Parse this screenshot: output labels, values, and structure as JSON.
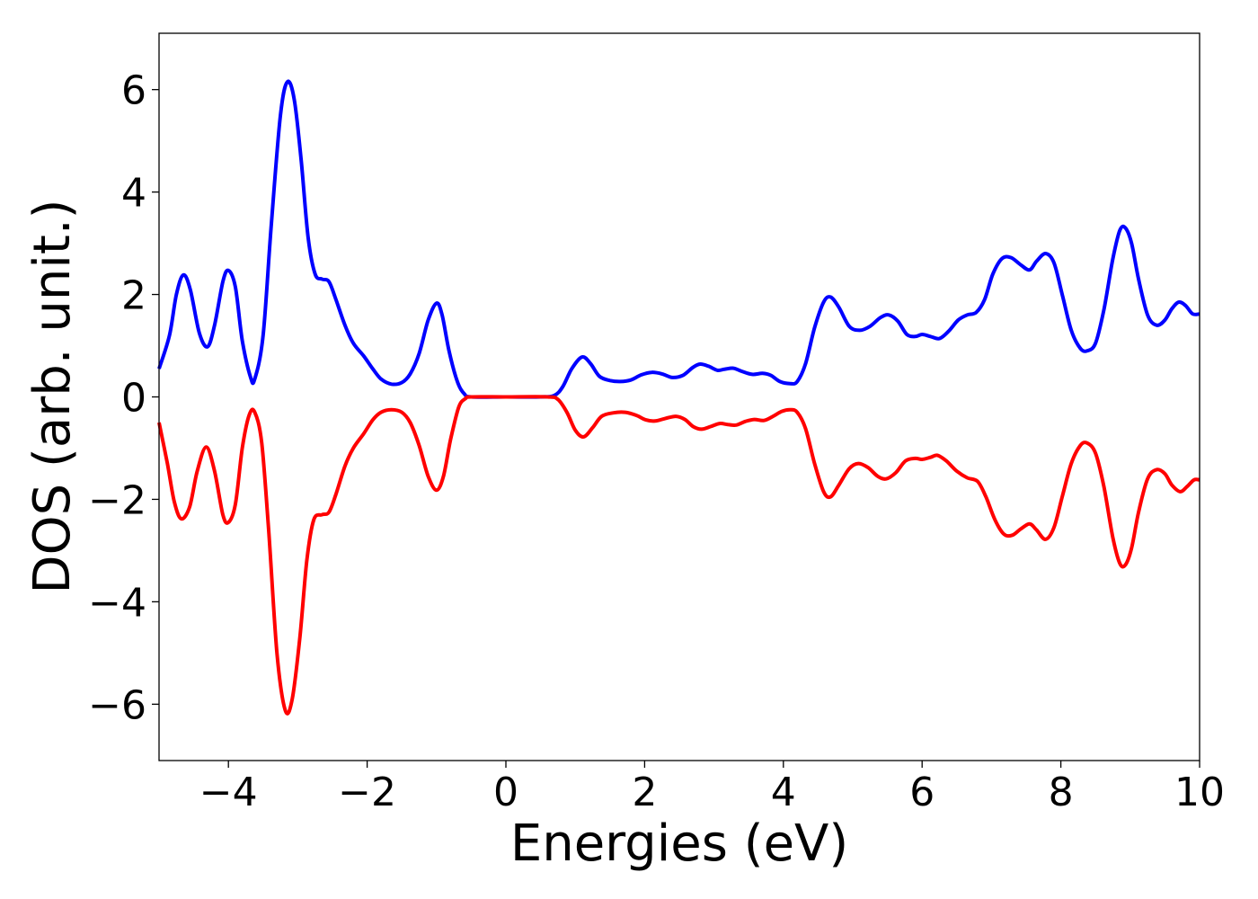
{
  "chart_data": {
    "type": "line",
    "title": "",
    "xlabel": "Energies (eV)",
    "ylabel": "DOS (arb. unit.)",
    "xlim": [
      -5,
      10
    ],
    "ylim": [
      -7.1,
      7.1
    ],
    "xticks": [
      -4,
      -2,
      0,
      2,
      4,
      6,
      8,
      10
    ],
    "yticks": [
      -6,
      -4,
      -2,
      0,
      2,
      4,
      6
    ],
    "xtick_labels": [
      "−4",
      "−2",
      "0",
      "2",
      "4",
      "6",
      "8",
      "10"
    ],
    "ytick_labels": [
      "−6",
      "−4",
      "−2",
      "0",
      "2",
      "4",
      "6"
    ],
    "grid": false,
    "legend": "none",
    "series": [
      {
        "color": "#0000ff",
        "points": [
          [
            -5.0,
            0.55
          ],
          [
            -4.85,
            1.2
          ],
          [
            -4.75,
            2.0
          ],
          [
            -4.65,
            2.38
          ],
          [
            -4.55,
            2.1
          ],
          [
            -4.42,
            1.25
          ],
          [
            -4.3,
            0.98
          ],
          [
            -4.2,
            1.4
          ],
          [
            -4.08,
            2.25
          ],
          [
            -4.0,
            2.47
          ],
          [
            -3.9,
            2.15
          ],
          [
            -3.8,
            1.1
          ],
          [
            -3.68,
            0.38
          ],
          [
            -3.62,
            0.35
          ],
          [
            -3.5,
            1.2
          ],
          [
            -3.38,
            3.4
          ],
          [
            -3.25,
            5.5
          ],
          [
            -3.15,
            6.15
          ],
          [
            -3.05,
            5.8
          ],
          [
            -2.95,
            4.6
          ],
          [
            -2.85,
            3.1
          ],
          [
            -2.75,
            2.4
          ],
          [
            -2.65,
            2.3
          ],
          [
            -2.55,
            2.25
          ],
          [
            -2.45,
            1.9
          ],
          [
            -2.32,
            1.4
          ],
          [
            -2.2,
            1.05
          ],
          [
            -2.05,
            0.8
          ],
          [
            -1.92,
            0.55
          ],
          [
            -1.8,
            0.35
          ],
          [
            -1.65,
            0.25
          ],
          [
            -1.5,
            0.28
          ],
          [
            -1.38,
            0.45
          ],
          [
            -1.25,
            0.85
          ],
          [
            -1.12,
            1.5
          ],
          [
            -1.0,
            1.83
          ],
          [
            -0.92,
            1.6
          ],
          [
            -0.82,
            0.9
          ],
          [
            -0.7,
            0.3
          ],
          [
            -0.6,
            0.06
          ],
          [
            -0.5,
            0.0
          ],
          [
            0.0,
            0.0
          ],
          [
            0.5,
            0.0
          ],
          [
            0.7,
            0.03
          ],
          [
            0.82,
            0.2
          ],
          [
            0.95,
            0.55
          ],
          [
            1.1,
            0.78
          ],
          [
            1.22,
            0.65
          ],
          [
            1.35,
            0.4
          ],
          [
            1.5,
            0.32
          ],
          [
            1.65,
            0.3
          ],
          [
            1.8,
            0.33
          ],
          [
            1.95,
            0.43
          ],
          [
            2.1,
            0.48
          ],
          [
            2.25,
            0.45
          ],
          [
            2.4,
            0.38
          ],
          [
            2.55,
            0.42
          ],
          [
            2.7,
            0.58
          ],
          [
            2.8,
            0.64
          ],
          [
            2.92,
            0.6
          ],
          [
            3.05,
            0.52
          ],
          [
            3.15,
            0.54
          ],
          [
            3.28,
            0.56
          ],
          [
            3.4,
            0.5
          ],
          [
            3.55,
            0.44
          ],
          [
            3.7,
            0.46
          ],
          [
            3.82,
            0.42
          ],
          [
            3.95,
            0.3
          ],
          [
            4.1,
            0.26
          ],
          [
            4.2,
            0.3
          ],
          [
            4.32,
            0.65
          ],
          [
            4.45,
            1.35
          ],
          [
            4.58,
            1.85
          ],
          [
            4.68,
            1.95
          ],
          [
            4.8,
            1.75
          ],
          [
            4.95,
            1.38
          ],
          [
            5.1,
            1.3
          ],
          [
            5.25,
            1.38
          ],
          [
            5.4,
            1.55
          ],
          [
            5.52,
            1.6
          ],
          [
            5.65,
            1.48
          ],
          [
            5.78,
            1.22
          ],
          [
            5.9,
            1.18
          ],
          [
            6.0,
            1.22
          ],
          [
            6.12,
            1.18
          ],
          [
            6.25,
            1.14
          ],
          [
            6.38,
            1.28
          ],
          [
            6.52,
            1.5
          ],
          [
            6.65,
            1.6
          ],
          [
            6.78,
            1.65
          ],
          [
            6.9,
            1.9
          ],
          [
            7.02,
            2.4
          ],
          [
            7.15,
            2.7
          ],
          [
            7.28,
            2.72
          ],
          [
            7.42,
            2.58
          ],
          [
            7.55,
            2.48
          ],
          [
            7.65,
            2.65
          ],
          [
            7.78,
            2.8
          ],
          [
            7.9,
            2.62
          ],
          [
            8.02,
            2.0
          ],
          [
            8.15,
            1.3
          ],
          [
            8.28,
            0.95
          ],
          [
            8.38,
            0.9
          ],
          [
            8.5,
            1.05
          ],
          [
            8.62,
            1.7
          ],
          [
            8.75,
            2.7
          ],
          [
            8.85,
            3.25
          ],
          [
            8.93,
            3.3
          ],
          [
            9.02,
            3.0
          ],
          [
            9.12,
            2.3
          ],
          [
            9.25,
            1.6
          ],
          [
            9.38,
            1.4
          ],
          [
            9.5,
            1.5
          ],
          [
            9.6,
            1.72
          ],
          [
            9.7,
            1.85
          ],
          [
            9.8,
            1.78
          ],
          [
            9.9,
            1.62
          ],
          [
            10.0,
            1.62
          ]
        ]
      },
      {
        "color": "#ff0000",
        "points": [
          [
            -5.0,
            -0.5
          ],
          [
            -4.88,
            -1.3
          ],
          [
            -4.78,
            -2.05
          ],
          [
            -4.68,
            -2.38
          ],
          [
            -4.56,
            -2.15
          ],
          [
            -4.45,
            -1.45
          ],
          [
            -4.32,
            -0.98
          ],
          [
            -4.2,
            -1.45
          ],
          [
            -4.08,
            -2.3
          ],
          [
            -4.0,
            -2.45
          ],
          [
            -3.9,
            -2.1
          ],
          [
            -3.8,
            -1.0
          ],
          [
            -3.7,
            -0.35
          ],
          [
            -3.62,
            -0.3
          ],
          [
            -3.52,
            -0.9
          ],
          [
            -3.42,
            -2.6
          ],
          [
            -3.3,
            -5.0
          ],
          [
            -3.18,
            -6.12
          ],
          [
            -3.08,
            -5.9
          ],
          [
            -2.97,
            -4.7
          ],
          [
            -2.87,
            -3.2
          ],
          [
            -2.77,
            -2.4
          ],
          [
            -2.65,
            -2.3
          ],
          [
            -2.55,
            -2.25
          ],
          [
            -2.45,
            -1.9
          ],
          [
            -2.32,
            -1.35
          ],
          [
            -2.2,
            -1.0
          ],
          [
            -2.05,
            -0.72
          ],
          [
            -1.92,
            -0.45
          ],
          [
            -1.8,
            -0.3
          ],
          [
            -1.65,
            -0.25
          ],
          [
            -1.5,
            -0.3
          ],
          [
            -1.38,
            -0.5
          ],
          [
            -1.25,
            -0.95
          ],
          [
            -1.12,
            -1.55
          ],
          [
            -1.0,
            -1.82
          ],
          [
            -0.9,
            -1.55
          ],
          [
            -0.8,
            -0.85
          ],
          [
            -0.68,
            -0.2
          ],
          [
            -0.58,
            -0.03
          ],
          [
            -0.5,
            0.0
          ],
          [
            0.0,
            0.0
          ],
          [
            0.6,
            0.0
          ],
          [
            0.75,
            -0.05
          ],
          [
            0.88,
            -0.3
          ],
          [
            1.0,
            -0.65
          ],
          [
            1.12,
            -0.78
          ],
          [
            1.25,
            -0.6
          ],
          [
            1.38,
            -0.38
          ],
          [
            1.55,
            -0.31
          ],
          [
            1.72,
            -0.3
          ],
          [
            1.88,
            -0.36
          ],
          [
            2.02,
            -0.45
          ],
          [
            2.15,
            -0.47
          ],
          [
            2.3,
            -0.42
          ],
          [
            2.45,
            -0.38
          ],
          [
            2.58,
            -0.44
          ],
          [
            2.7,
            -0.58
          ],
          [
            2.82,
            -0.63
          ],
          [
            2.95,
            -0.58
          ],
          [
            3.08,
            -0.52
          ],
          [
            3.2,
            -0.54
          ],
          [
            3.32,
            -0.55
          ],
          [
            3.45,
            -0.48
          ],
          [
            3.58,
            -0.44
          ],
          [
            3.72,
            -0.46
          ],
          [
            3.85,
            -0.38
          ],
          [
            3.98,
            -0.28
          ],
          [
            4.1,
            -0.25
          ],
          [
            4.2,
            -0.3
          ],
          [
            4.32,
            -0.62
          ],
          [
            4.45,
            -1.3
          ],
          [
            4.58,
            -1.85
          ],
          [
            4.68,
            -1.95
          ],
          [
            4.8,
            -1.72
          ],
          [
            4.95,
            -1.4
          ],
          [
            5.08,
            -1.3
          ],
          [
            5.22,
            -1.38
          ],
          [
            5.36,
            -1.55
          ],
          [
            5.48,
            -1.6
          ],
          [
            5.62,
            -1.48
          ],
          [
            5.76,
            -1.25
          ],
          [
            5.9,
            -1.2
          ],
          [
            6.0,
            -1.22
          ],
          [
            6.12,
            -1.18
          ],
          [
            6.22,
            -1.14
          ],
          [
            6.35,
            -1.25
          ],
          [
            6.5,
            -1.45
          ],
          [
            6.65,
            -1.58
          ],
          [
            6.8,
            -1.65
          ],
          [
            6.92,
            -1.95
          ],
          [
            7.05,
            -2.4
          ],
          [
            7.18,
            -2.68
          ],
          [
            7.3,
            -2.7
          ],
          [
            7.42,
            -2.58
          ],
          [
            7.55,
            -2.48
          ],
          [
            7.65,
            -2.6
          ],
          [
            7.78,
            -2.78
          ],
          [
            7.9,
            -2.55
          ],
          [
            8.02,
            -1.95
          ],
          [
            8.15,
            -1.3
          ],
          [
            8.28,
            -0.95
          ],
          [
            8.38,
            -0.9
          ],
          [
            8.5,
            -1.1
          ],
          [
            8.62,
            -1.75
          ],
          [
            8.75,
            -2.75
          ],
          [
            8.85,
            -3.25
          ],
          [
            8.93,
            -3.28
          ],
          [
            9.02,
            -2.95
          ],
          [
            9.12,
            -2.25
          ],
          [
            9.25,
            -1.6
          ],
          [
            9.38,
            -1.42
          ],
          [
            9.5,
            -1.5
          ],
          [
            9.6,
            -1.72
          ],
          [
            9.72,
            -1.85
          ],
          [
            9.82,
            -1.75
          ],
          [
            9.92,
            -1.62
          ],
          [
            10.0,
            -1.62
          ]
        ]
      }
    ]
  }
}
